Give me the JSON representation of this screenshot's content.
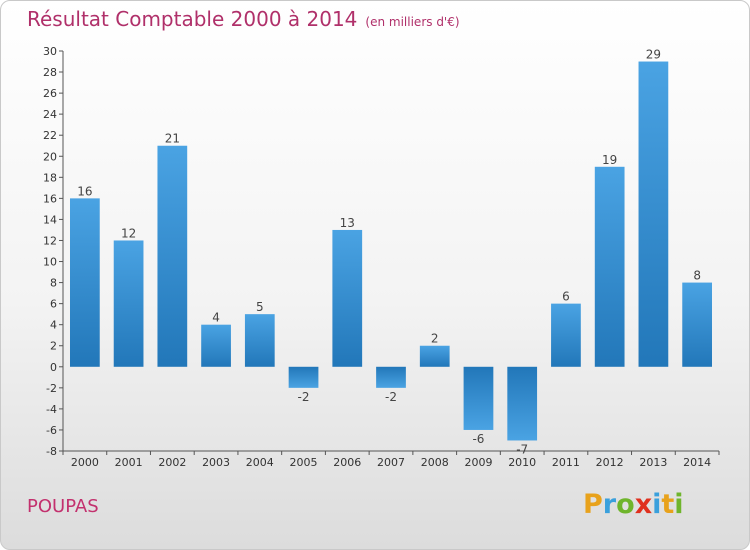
{
  "title": "Résultat Comptable 2000 à 2014",
  "subtitle": "(en milliers d'€)",
  "town": "POUPAS",
  "logo": {
    "letters": [
      "P",
      "r",
      "o",
      "x",
      "i",
      "t",
      "i"
    ],
    "colors": [
      "#e8a21c",
      "#3aa0dc",
      "#6fb52c",
      "#e0301e",
      "#3aa0dc",
      "#e8a21c",
      "#6fb52c"
    ]
  },
  "colors": {
    "bar": "#4aa3e3",
    "bar_dark": "#2277b9",
    "title": "#b0306a",
    "town": "#c3316e"
  },
  "chart_data": {
    "type": "bar",
    "title": "Résultat Comptable 2000 à 2014",
    "xlabel": "",
    "ylabel": "",
    "categories": [
      "2000",
      "2001",
      "2002",
      "2003",
      "2004",
      "2005",
      "2006",
      "2007",
      "2008",
      "2009",
      "2010",
      "2011",
      "2012",
      "2013",
      "2014"
    ],
    "values": [
      16,
      12,
      21,
      4,
      5,
      -2,
      13,
      -2,
      2,
      -6,
      -7,
      6,
      19,
      29,
      8
    ],
    "ylim": [
      -8,
      30
    ],
    "yticks": [
      -8,
      -6,
      -4,
      -2,
      0,
      2,
      4,
      6,
      8,
      10,
      12,
      14,
      16,
      18,
      20,
      22,
      24,
      26,
      28,
      30
    ],
    "grid": false
  }
}
